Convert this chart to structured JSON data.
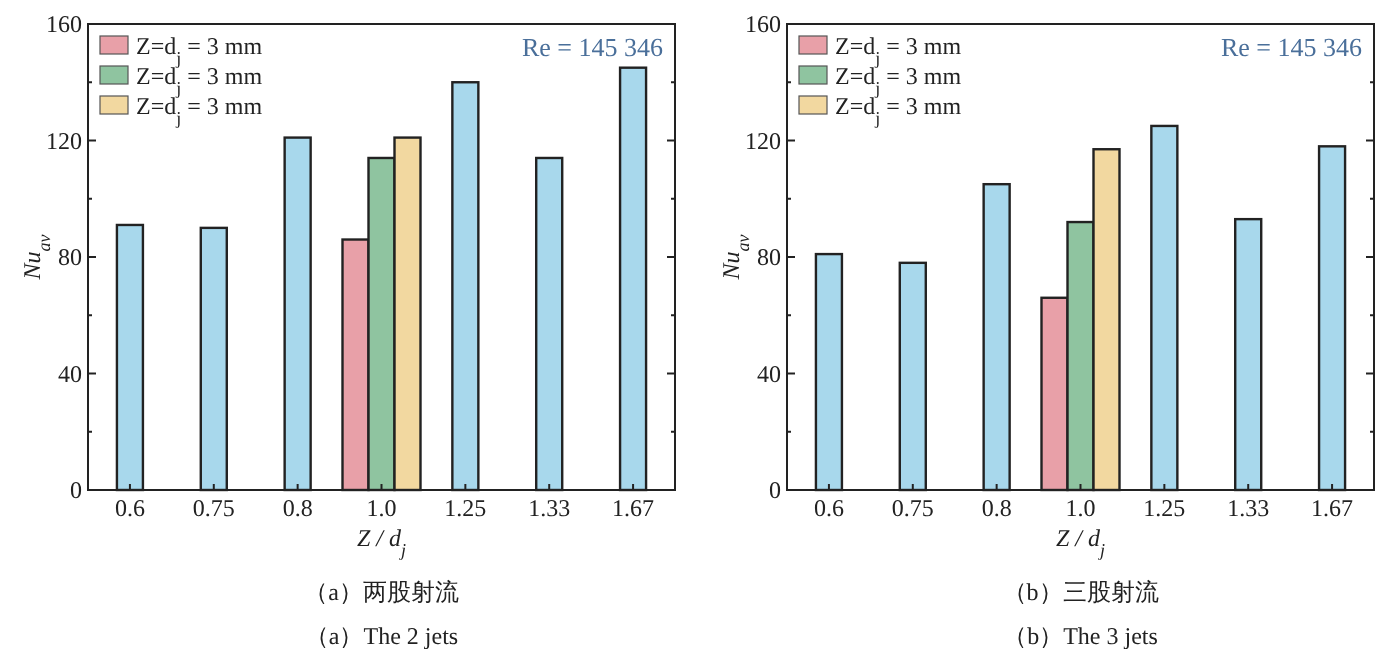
{
  "chart_data": [
    {
      "type": "bar",
      "title": "（a）两股射流",
      "subtitle": "（a）The 2 jets",
      "xlabel": "Z / d$_{j}$",
      "ylabel": "Nu$_{av}$",
      "annotations": [
        "Re = 145 346"
      ],
      "legend": "top left",
      "categories": [
        "0.6",
        "0.75",
        "0.8",
        "1.0",
        "1.25",
        "1.33",
        "1.67"
      ],
      "series": [
        {
          "name": "Z=d$_{j}$ = 3 mm",
          "color": "#e8a0a8",
          "values": [
            null,
            null,
            null,
            86,
            null,
            null,
            null
          ]
        },
        {
          "name": "Z=d$_{j}$ = 3 mm",
          "color": "#8fc4a0",
          "values": [
            null,
            null,
            null,
            114,
            null,
            null,
            null
          ]
        },
        {
          "name": "Z=d$_{j}$ = 3 mm",
          "color": "#f2d8a0",
          "values": [
            null,
            null,
            null,
            121,
            null,
            null,
            null
          ]
        },
        {
          "color": "#a8d8ec",
          "values": [
            91,
            90,
            121,
            null,
            140,
            114,
            145
          ]
        }
      ],
      "ylim": [
        0,
        160
      ],
      "yticks": [
        0,
        {
          "value": 20,
          "label": null
        },
        40,
        {
          "value": 60,
          "label": null
        },
        80,
        {
          "value": 100,
          "label": null
        },
        120,
        {
          "value": 140,
          "label": null
        },
        160
      ]
    },
    {
      "type": "bar",
      "title": "（b）三股射流",
      "subtitle": "（b）The 3 jets",
      "xlabel": "Z / d$_{j}$",
      "ylabel": "Nu$_{av}$",
      "annotations": [
        "Re = 145 346"
      ],
      "legend": "top left",
      "categories": [
        "0.6",
        "0.75",
        "0.8",
        "1.0",
        "1.25",
        "1.33",
        "1.67"
      ],
      "series": [
        {
          "name": "Z=d$_{j}$ = 3 mm",
          "color": "#e8a0a8",
          "values": [
            null,
            null,
            null,
            66,
            null,
            null,
            null
          ]
        },
        {
          "name": "Z=d$_{j}$ = 3 mm",
          "color": "#8fc4a0",
          "values": [
            null,
            null,
            null,
            92,
            null,
            null,
            null
          ]
        },
        {
          "name": "Z=d$_{j}$ = 3 mm",
          "color": "#f2d8a0",
          "values": [
            null,
            null,
            null,
            117,
            null,
            null,
            null
          ]
        },
        {
          "color": "#a8d8ec",
          "values": [
            81,
            78,
            105,
            null,
            125,
            93,
            118
          ]
        }
      ],
      "ylim": [
        0,
        160
      ],
      "yticks": [
        0,
        {
          "value": 20,
          "label": null
        },
        40,
        {
          "value": 60,
          "label": null
        },
        80,
        {
          "value": 100,
          "label": null
        },
        120,
        {
          "value": 140,
          "label": null
        },
        160
      ]
    }
  ]
}
